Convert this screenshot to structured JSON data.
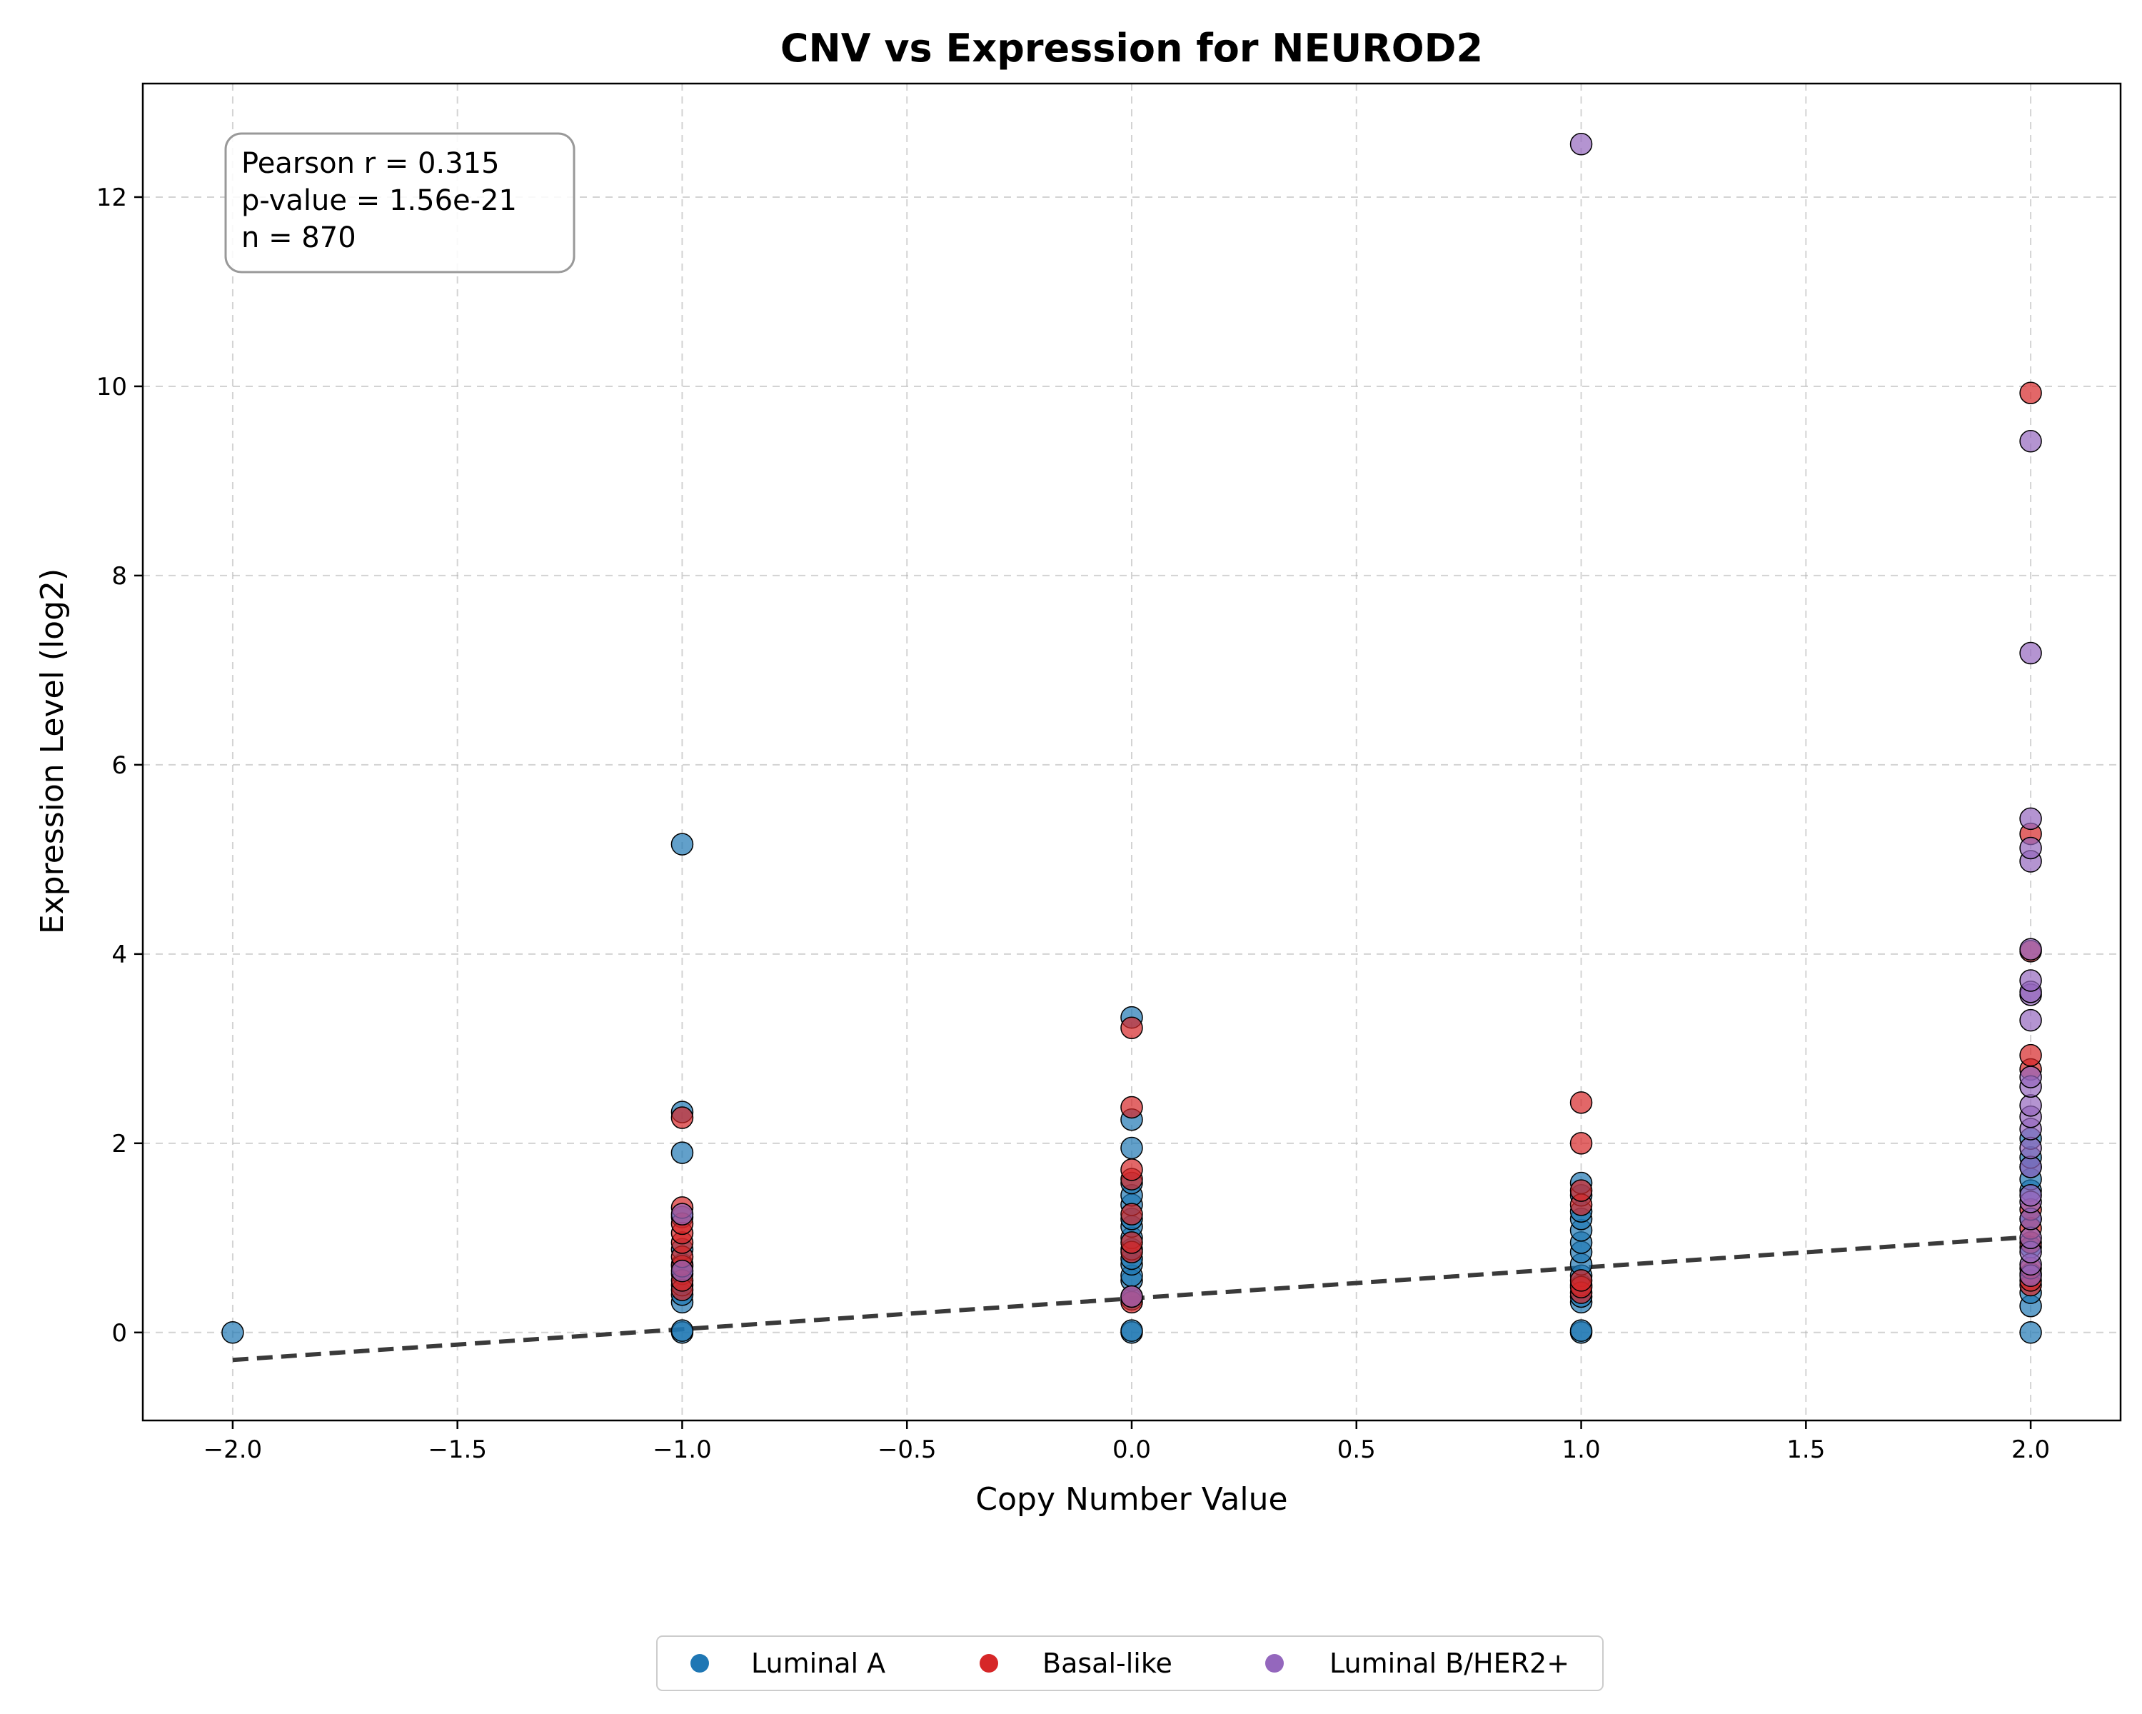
{
  "chart_data": {
    "type": "scatter",
    "title": "CNV vs Expression for NEUROD2",
    "xlabel": "Copy Number Value",
    "ylabel": "Expression Level (log2)",
    "xlim": [
      -2.2,
      2.2
    ],
    "ylim": [
      -0.93,
      13.2
    ],
    "xticks": [
      -2.0,
      -1.5,
      -1.0,
      -0.5,
      0.0,
      0.5,
      1.0,
      1.5,
      2.0
    ],
    "xtick_labels": [
      "−2.0",
      "−1.5",
      "−1.0",
      "−0.5",
      "0.0",
      "0.5",
      "1.0",
      "1.5",
      "2.0"
    ],
    "yticks": [
      0,
      2,
      4,
      6,
      8,
      10,
      12
    ],
    "ytick_labels": [
      "0",
      "2",
      "4",
      "6",
      "8",
      "10",
      "12"
    ],
    "grid": true,
    "legend_position": "bottom-center",
    "stats": {
      "line1": "Pearson r = 0.315",
      "line2": "p-value = 1.56e-21",
      "line3": "n = 870"
    },
    "regression": {
      "x": [
        -2.0,
        2.0
      ],
      "y": [
        -0.29,
        1.01
      ],
      "color": "#3a3a3a"
    },
    "series": [
      {
        "name": "Luminal A",
        "color": "#1f77b4",
        "points": [
          [
            -2,
            0.0
          ],
          [
            -1,
            0.0
          ],
          [
            -1,
            0.02
          ],
          [
            -1,
            0.32
          ],
          [
            -1,
            0.4
          ],
          [
            -1,
            0.5
          ],
          [
            -1,
            0.62
          ],
          [
            -1,
            0.72
          ],
          [
            -1,
            0.88
          ],
          [
            -1,
            1.22
          ],
          [
            -1,
            1.9
          ],
          [
            -1,
            2.33
          ],
          [
            -1,
            5.16
          ],
          [
            0,
            0.0
          ],
          [
            0,
            0.02
          ],
          [
            0,
            0.35
          ],
          [
            0,
            0.55
          ],
          [
            0,
            0.6
          ],
          [
            0,
            0.72
          ],
          [
            0,
            0.78
          ],
          [
            0,
            0.88
          ],
          [
            0,
            1.0
          ],
          [
            0,
            1.12
          ],
          [
            0,
            1.2
          ],
          [
            0,
            1.35
          ],
          [
            0,
            1.45
          ],
          [
            0,
            1.58
          ],
          [
            0,
            1.95
          ],
          [
            0,
            2.25
          ],
          [
            0,
            3.33
          ],
          [
            1,
            0.0
          ],
          [
            1,
            0.02
          ],
          [
            1,
            0.32
          ],
          [
            1,
            0.38
          ],
          [
            1,
            0.5
          ],
          [
            1,
            0.6
          ],
          [
            1,
            0.72
          ],
          [
            1,
            0.85
          ],
          [
            1,
            0.95
          ],
          [
            1,
            1.08
          ],
          [
            1,
            1.2
          ],
          [
            1,
            1.28
          ],
          [
            1,
            1.45
          ],
          [
            1,
            1.58
          ],
          [
            2,
            0.0
          ],
          [
            2,
            0.28
          ],
          [
            2,
            0.42
          ],
          [
            2,
            0.62
          ],
          [
            2,
            0.9
          ],
          [
            2,
            1.2
          ],
          [
            2,
            1.5
          ],
          [
            2,
            1.62
          ],
          [
            2,
            1.75
          ],
          [
            2,
            1.85
          ],
          [
            2,
            2.05
          ]
        ]
      },
      {
        "name": "Basal-like",
        "color": "#d62728",
        "points": [
          [
            -1,
            0.45
          ],
          [
            -1,
            0.55
          ],
          [
            -1,
            0.7
          ],
          [
            -1,
            0.8
          ],
          [
            -1,
            0.95
          ],
          [
            -1,
            1.05
          ],
          [
            -1,
            1.15
          ],
          [
            -1,
            1.32
          ],
          [
            -1,
            2.27
          ],
          [
            0,
            0.32
          ],
          [
            0,
            0.38
          ],
          [
            0,
            0.85
          ],
          [
            0,
            0.95
          ],
          [
            0,
            1.25
          ],
          [
            0,
            1.62
          ],
          [
            0,
            1.72
          ],
          [
            0,
            2.38
          ],
          [
            0,
            3.22
          ],
          [
            1,
            0.42
          ],
          [
            1,
            0.48
          ],
          [
            1,
            0.55
          ],
          [
            1,
            1.35
          ],
          [
            1,
            1.5
          ],
          [
            1,
            2.0
          ],
          [
            1,
            2.43
          ],
          [
            2,
            0.5
          ],
          [
            2,
            0.55
          ],
          [
            2,
            0.68
          ],
          [
            2,
            0.95
          ],
          [
            2,
            1.1
          ],
          [
            2,
            1.3
          ],
          [
            2,
            2.78
          ],
          [
            2,
            2.93
          ],
          [
            2,
            4.03
          ],
          [
            2,
            5.27
          ],
          [
            2,
            9.93
          ]
        ]
      },
      {
        "name": "Luminal B/HER2+",
        "color": "#9467bd",
        "points": [
          [
            -1,
            0.65
          ],
          [
            -1,
            1.25
          ],
          [
            0,
            0.38
          ],
          [
            1,
            12.56
          ],
          [
            2,
            0.6
          ],
          [
            2,
            0.72
          ],
          [
            2,
            0.85
          ],
          [
            2,
            1.0
          ],
          [
            2,
            1.2
          ],
          [
            2,
            1.38
          ],
          [
            2,
            1.45
          ],
          [
            2,
            1.75
          ],
          [
            2,
            1.95
          ],
          [
            2,
            2.15
          ],
          [
            2,
            2.28
          ],
          [
            2,
            2.4
          ],
          [
            2,
            2.6
          ],
          [
            2,
            2.7
          ],
          [
            2,
            3.3
          ],
          [
            2,
            3.57
          ],
          [
            2,
            3.6
          ],
          [
            2,
            3.72
          ],
          [
            2,
            4.05
          ],
          [
            2,
            4.98
          ],
          [
            2,
            5.12
          ],
          [
            2,
            5.43
          ],
          [
            2,
            7.18
          ],
          [
            2,
            9.42
          ]
        ]
      }
    ]
  }
}
